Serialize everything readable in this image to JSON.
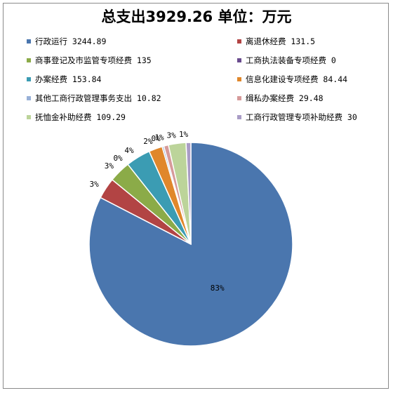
{
  "chart_data": {
    "type": "pie",
    "title": "总支出3929.26  单位：万元",
    "legend_position": "top",
    "slices": [
      {
        "label": "行政运行 3244.89",
        "value": 3244.89,
        "percent_label": "83%",
        "color": "#4a76ae"
      },
      {
        "label": "离退休经费 131.5",
        "value": 131.5,
        "percent_label": "3%",
        "color": "#b24444"
      },
      {
        "label": "商事登记及市监管专项经费 135",
        "value": 135,
        "percent_label": "3%",
        "color": "#8bab48"
      },
      {
        "label": "工商执法装备专项经费 0",
        "value": 0,
        "percent_label": "0%",
        "color": "#6a4b8e"
      },
      {
        "label": "办案经费 153.84",
        "value": 153.84,
        "percent_label": "4%",
        "color": "#3b9cb3"
      },
      {
        "label": "信息化建设专项经费 84.44",
        "value": 84.44,
        "percent_label": "2%",
        "color": "#e0872b"
      },
      {
        "label": "其他工商行政管理事务支出 10.82",
        "value": 10.82,
        "percent_label": "0%",
        "color": "#98b1d8"
      },
      {
        "label": "缉私办案经费 29.48",
        "value": 29.48,
        "percent_label": "1%",
        "color": "#d69a9a"
      },
      {
        "label": "抚恤金补助经费 109.29",
        "value": 109.29,
        "percent_label": "3%",
        "color": "#bcd49a"
      },
      {
        "label": "工商行政管理专项补助经费 30",
        "value": 30,
        "percent_label": "1%",
        "color": "#a99cc6"
      }
    ]
  }
}
